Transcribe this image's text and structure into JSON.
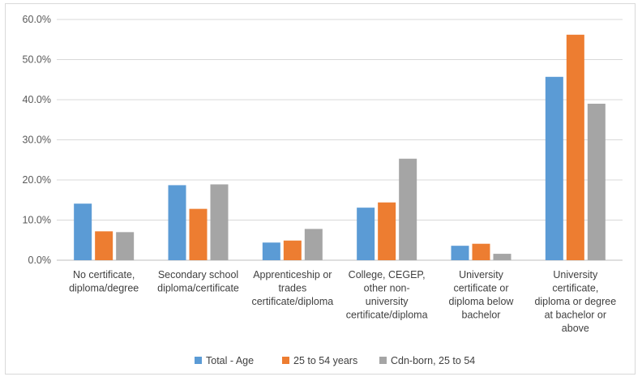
{
  "chart_data": {
    "type": "bar",
    "title": "",
    "xlabel": "",
    "ylabel": "",
    "ylim": [
      0,
      60
    ],
    "yticks": [
      "0.0%",
      "10.0%",
      "20.0%",
      "30.0%",
      "40.0%",
      "50.0%",
      "60.0%"
    ],
    "grid": true,
    "legend_position": "bottom",
    "categories": [
      [
        "No certificate,",
        "diploma/degree"
      ],
      [
        "Secondary school",
        "diploma/certificate"
      ],
      [
        "Apprenticeship or",
        "trades",
        "certificate/diploma"
      ],
      [
        "College, CEGEP,",
        "other non-",
        "university",
        "certificate/diploma"
      ],
      [
        "University",
        "certificate or",
        "diploma below",
        "bachelor"
      ],
      [
        "University",
        "certificate,",
        "diploma or degree",
        "at bachelor or",
        "above"
      ]
    ],
    "series": [
      {
        "name": "Total - Age",
        "color": "#5b9bd5",
        "values": [
          14.1,
          18.7,
          4.4,
          13.1,
          3.6,
          45.7
        ]
      },
      {
        "name": "25 to 54 years",
        "color": "#ed7d31",
        "values": [
          7.2,
          12.8,
          4.9,
          14.4,
          4.1,
          56.2
        ]
      },
      {
        "name": "Cdn-born, 25 to 54",
        "color": "#a5a5a5",
        "values": [
          7.0,
          18.9,
          7.8,
          25.3,
          1.6,
          39.0
        ]
      }
    ]
  }
}
